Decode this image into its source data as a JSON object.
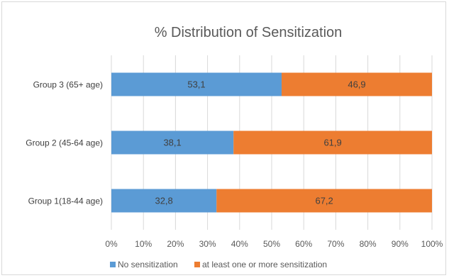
{
  "chart_data": {
    "type": "bar",
    "orientation": "horizontal",
    "stacked": true,
    "percent": true,
    "title": "% Distribution of Sensitization",
    "categories": [
      "Group 3 (65+ age)",
      "Group 2 (45-64 age)",
      "Group 1(18-44 age)"
    ],
    "series": [
      {
        "name": "No sensitization",
        "color": "#5b9bd5",
        "values": [
          53.1,
          38.1,
          32.8
        ],
        "labels": [
          "53,1",
          "38,1",
          "32,8"
        ]
      },
      {
        "name": "at least one or more sensitization",
        "color": "#ed7d31",
        "values": [
          46.9,
          61.9,
          67.2
        ],
        "labels": [
          "46,9",
          "61,9",
          "67,2"
        ]
      }
    ],
    "xlim": [
      0,
      100
    ],
    "xticks": [
      "0%",
      "10%",
      "20%",
      "30%",
      "40%",
      "50%",
      "60%",
      "70%",
      "80%",
      "90%",
      "100%"
    ],
    "grid": true,
    "legend_position": "bottom"
  }
}
